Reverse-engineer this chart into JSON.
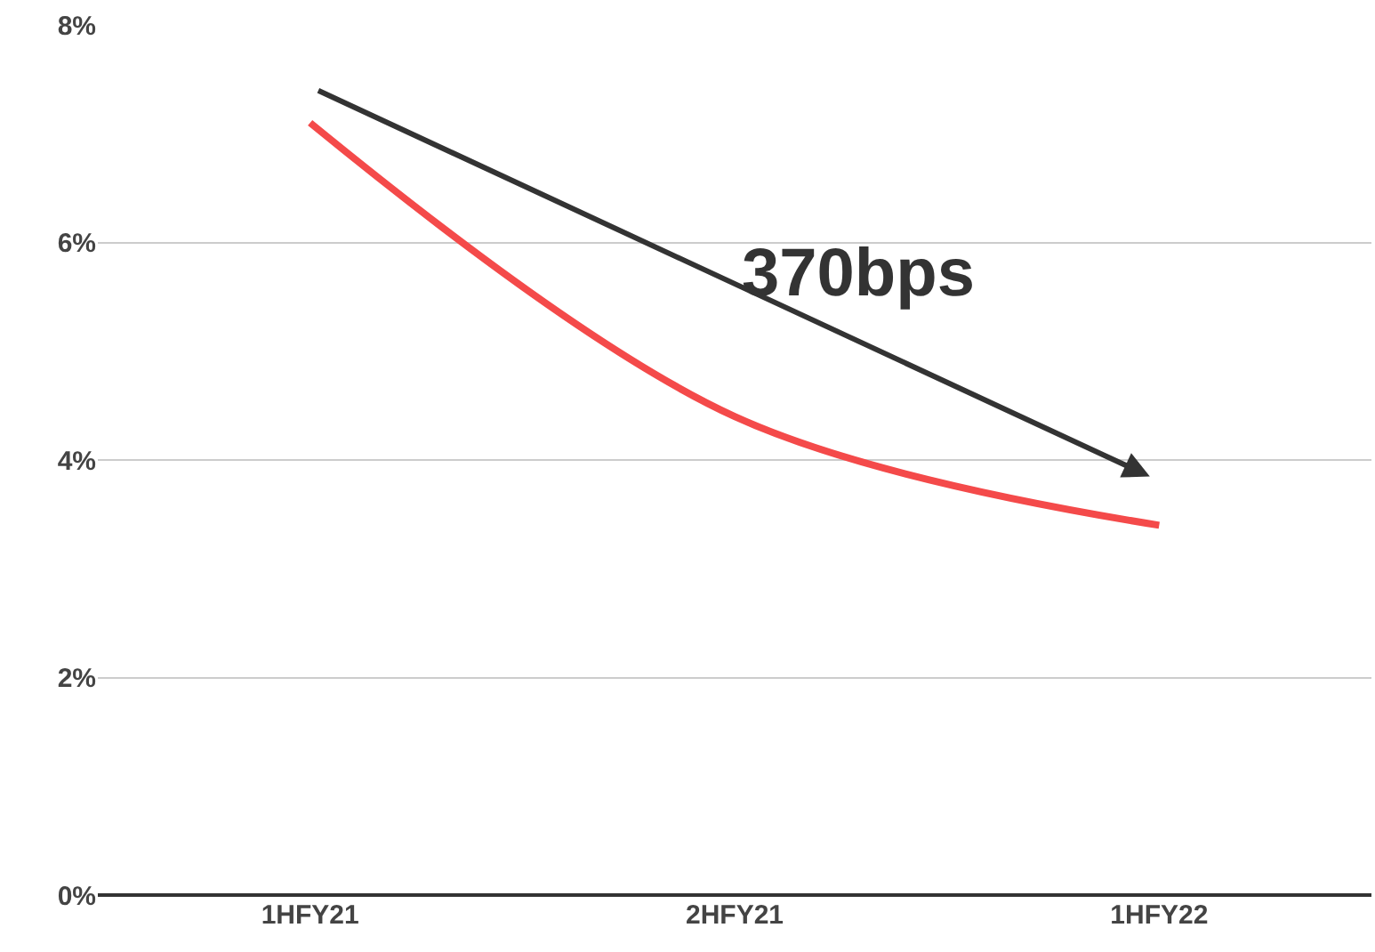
{
  "chart_data": {
    "type": "line",
    "categories": [
      "1HFY21",
      "2HFY21",
      "1HFY22"
    ],
    "series": [
      {
        "color": "#f44a4a",
        "values": [
          7.1,
          4.4,
          3.4
        ]
      }
    ],
    "ylim": [
      0,
      8
    ],
    "yticks": [
      {
        "value": 0,
        "label": "0%"
      },
      {
        "value": 2,
        "label": "2%"
      },
      {
        "value": 4,
        "label": "4%"
      },
      {
        "value": 6,
        "label": "6%"
      },
      {
        "value": 8,
        "label": "8%"
      }
    ],
    "grid": "y",
    "marker": "none",
    "line_style": "solid",
    "annotations": [
      "370bps"
    ]
  }
}
